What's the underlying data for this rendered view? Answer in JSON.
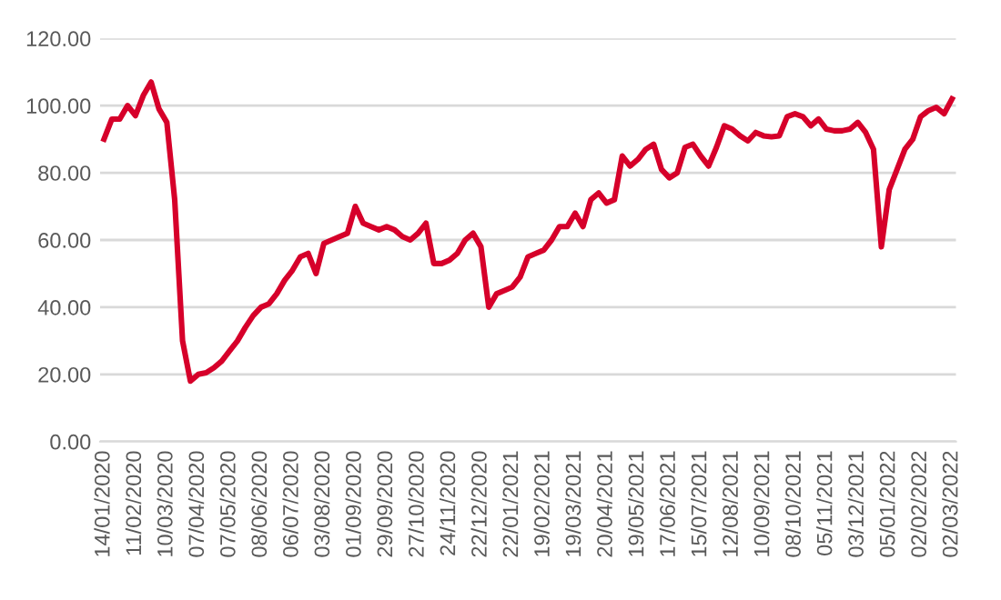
{
  "chart_data": {
    "type": "line",
    "categories": [
      "14/01/2020",
      null,
      null,
      null,
      "11/02/2020",
      null,
      null,
      null,
      "10/03/2020",
      null,
      null,
      null,
      "07/04/2020",
      null,
      null,
      null,
      "07/05/2020",
      null,
      null,
      null,
      "08/06/2020",
      null,
      null,
      null,
      "06/07/2020",
      null,
      null,
      null,
      "03/08/2020",
      null,
      null,
      null,
      "01/09/2020",
      null,
      null,
      null,
      "29/09/2020",
      null,
      null,
      null,
      "27/10/2020",
      null,
      null,
      null,
      "24/11/2020",
      null,
      null,
      null,
      "22/12/2020",
      null,
      null,
      null,
      "22/01/2021",
      null,
      null,
      null,
      "19/02/2021",
      null,
      null,
      null,
      "19/03/2021",
      null,
      null,
      null,
      "20/04/2021",
      null,
      null,
      null,
      "19/05/2021",
      null,
      null,
      null,
      "17/06/2021",
      null,
      null,
      null,
      "15/07/2021",
      null,
      null,
      null,
      "12/08/2021",
      null,
      null,
      null,
      "10/09/2021",
      null,
      null,
      null,
      "08/10/2021",
      null,
      null,
      null,
      "05/11/2021",
      null,
      null,
      null,
      "03/12/2021",
      null,
      null,
      null,
      "05/01/2022",
      null,
      null,
      null,
      "02/02/2022",
      null,
      null,
      null,
      "02/03/2022"
    ],
    "series": [
      {
        "color": "#d6002a",
        "values": [
          90,
          96,
          96,
          100,
          97,
          103,
          107,
          99,
          95,
          72,
          30,
          18,
          20,
          20.5,
          22,
          24,
          27,
          30,
          34,
          37.5,
          40,
          41,
          44,
          48,
          51,
          55,
          56,
          50,
          59,
          60,
          61,
          62,
          70,
          65,
          64,
          63,
          64,
          63,
          61,
          60,
          62,
          65,
          53,
          53,
          54,
          56,
          60,
          62,
          58,
          40,
          44,
          45,
          46,
          49,
          55,
          56,
          57,
          60,
          64,
          64,
          68,
          64,
          72,
          74,
          71,
          72,
          85,
          82,
          84,
          87,
          88.5,
          81,
          78.5,
          80,
          87.6,
          88.5,
          85,
          82,
          87.6,
          94,
          93,
          91,
          89.5,
          92,
          91,
          90.7,
          91,
          96.7,
          97.6,
          96.7,
          94,
          96,
          93,
          92.5,
          92.5,
          93,
          95,
          92,
          87,
          58,
          75,
          81,
          87,
          90,
          96.7,
          98.5,
          99.5,
          97.6,
          102
        ]
      }
    ],
    "ylim": [
      0,
      120
    ],
    "yticks": [
      {
        "value": 0,
        "label": "0.00"
      },
      {
        "value": 20,
        "label": "20.00"
      },
      {
        "value": 40,
        "label": "40.00"
      },
      {
        "value": 60,
        "label": "60.00"
      },
      {
        "value": 80,
        "label": "80.00"
      },
      {
        "value": 100,
        "label": "100.00"
      },
      {
        "value": 120,
        "label": "120.00"
      }
    ],
    "grid": "y",
    "marker": "none",
    "line_style": "solid"
  }
}
